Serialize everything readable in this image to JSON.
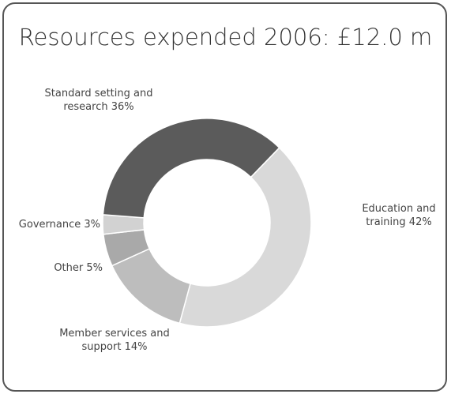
{
  "chart_data": {
    "type": "donut",
    "title": "Resources expended 2006: £12.0 m",
    "categories": [
      "Education and training",
      "Member services and support",
      "Other",
      "Governance",
      "Standard setting and research"
    ],
    "values": [
      42,
      14,
      5,
      3,
      36
    ],
    "value_labels": [
      "42%",
      "14%",
      "5%",
      "3%",
      "36%"
    ],
    "colors": [
      "#d9d9d9",
      "#bdbdbd",
      "#a9a9a9",
      "#d2d2d2",
      "#5b5b5b"
    ]
  }
}
